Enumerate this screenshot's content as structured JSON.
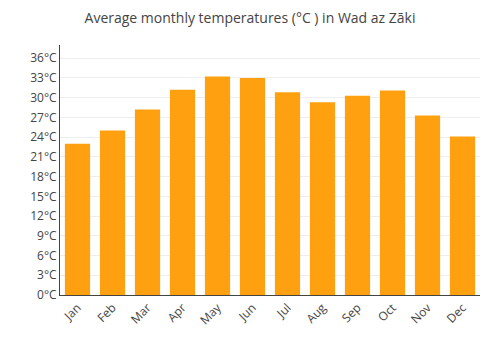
{
  "chart_data": {
    "type": "bar",
    "title": "Average monthly temperatures (°C ) in Wad az Zāki",
    "categories": [
      "Jan",
      "Feb",
      "Mar",
      "Apr",
      "May",
      "Jun",
      "Jul",
      "Aug",
      "Sep",
      "Oct",
      "Nov",
      "Dec"
    ],
    "values": [
      23.0,
      25.0,
      28.2,
      31.2,
      33.2,
      33.0,
      30.8,
      29.3,
      30.3,
      31.1,
      27.3,
      24.1
    ],
    "color": "#FFA010",
    "ylim": [
      0,
      38
    ],
    "yticks": [
      {
        "value": 0,
        "label": "0°C"
      },
      {
        "value": 3,
        "label": "3°C"
      },
      {
        "value": 6,
        "label": "6°C"
      },
      {
        "value": 9,
        "label": "9°C"
      },
      {
        "value": 12,
        "label": "12°C"
      },
      {
        "value": 15,
        "label": "15°C"
      },
      {
        "value": 18,
        "label": "18°C"
      },
      {
        "value": 21,
        "label": "21°C"
      },
      {
        "value": 24,
        "label": "24°C"
      },
      {
        "value": 27,
        "label": "27°C"
      },
      {
        "value": 30,
        "label": "30°C"
      },
      {
        "value": 33,
        "label": "33°C"
      },
      {
        "value": 36,
        "label": "36°C"
      }
    ],
    "grid": true
  }
}
